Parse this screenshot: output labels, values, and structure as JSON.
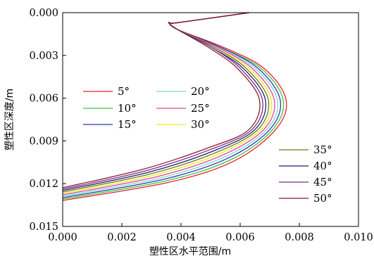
{
  "chart_data": {
    "type": "line",
    "title": "",
    "xlabel": "塑性区水平范围/m",
    "ylabel": "塑性区深度/m",
    "xlim": [
      0.0,
      0.01
    ],
    "ylim": [
      0.0,
      0.015
    ],
    "y_inverted": true,
    "x_ticks": [
      "0.000",
      "0.002",
      "0.004",
      "0.006",
      "0.008",
      "0.010"
    ],
    "y_ticks": [
      "0.000",
      "0.003",
      "0.006",
      "0.009",
      "0.012",
      "0.015"
    ],
    "grid": false,
    "legend_placement": "left-middle and right-lower",
    "series": [
      {
        "name": "5°",
        "color": "#e8202a",
        "points": [
          [
            0.0063,
            0.0
          ],
          [
            0.0039,
            0.0007
          ],
          [
            0.0036,
            0.0007
          ],
          [
            0.0039,
            0.0012
          ],
          [
            0.0054,
            0.0024
          ],
          [
            0.0068,
            0.0039
          ],
          [
            0.00755,
            0.0061
          ],
          [
            0.0072,
            0.0082
          ],
          [
            0.0058,
            0.0104
          ],
          [
            0.0036,
            0.0119
          ],
          [
            0.0,
            0.01318
          ]
        ]
      },
      {
        "name": "10°",
        "color": "#3cc23c",
        "points": [
          [
            0.0063,
            0.0
          ],
          [
            0.0039,
            0.0007
          ],
          [
            0.0036,
            0.0007
          ],
          [
            0.0039,
            0.0012
          ],
          [
            0.0053,
            0.0024
          ],
          [
            0.0067,
            0.0039
          ],
          [
            0.00745,
            0.0061
          ],
          [
            0.0071,
            0.0082
          ],
          [
            0.0057,
            0.0103
          ],
          [
            0.0035,
            0.0118
          ],
          [
            0.0,
            0.01308
          ]
        ]
      },
      {
        "name": "15°",
        "color": "#2a36b6",
        "points": [
          [
            0.0063,
            0.0
          ],
          [
            0.0039,
            0.0007
          ],
          [
            0.0036,
            0.0007
          ],
          [
            0.0039,
            0.0012
          ],
          [
            0.0053,
            0.0024
          ],
          [
            0.0066,
            0.0039
          ],
          [
            0.00735,
            0.0061
          ],
          [
            0.007,
            0.0082
          ],
          [
            0.0056,
            0.0102
          ],
          [
            0.0034,
            0.0117
          ],
          [
            0.0,
            0.01298
          ]
        ]
      },
      {
        "name": "20°",
        "color": "#7ad6cc",
        "points": [
          [
            0.0063,
            0.0
          ],
          [
            0.0039,
            0.0007
          ],
          [
            0.0036,
            0.0007
          ],
          [
            0.0039,
            0.0012
          ],
          [
            0.0052,
            0.0024
          ],
          [
            0.0065,
            0.0039
          ],
          [
            0.00725,
            0.0061
          ],
          [
            0.0069,
            0.0082
          ],
          [
            0.0055,
            0.0101
          ],
          [
            0.0033,
            0.0116
          ],
          [
            0.0,
            0.01288
          ]
        ]
      },
      {
        "name": "25°",
        "color": "#e0409a",
        "points": [
          [
            0.0063,
            0.0
          ],
          [
            0.0039,
            0.0007
          ],
          [
            0.0036,
            0.0007
          ],
          [
            0.0039,
            0.0012
          ],
          [
            0.0052,
            0.0024
          ],
          [
            0.0064,
            0.0039
          ],
          [
            0.00715,
            0.0061
          ],
          [
            0.0068,
            0.0082
          ],
          [
            0.0054,
            0.01
          ],
          [
            0.0032,
            0.0115
          ],
          [
            0.0,
            0.01278
          ]
        ]
      },
      {
        "name": "30°",
        "color": "#f2e51e",
        "points": [
          [
            0.0063,
            0.0
          ],
          [
            0.0039,
            0.0007
          ],
          [
            0.0036,
            0.0007
          ],
          [
            0.0039,
            0.0012
          ],
          [
            0.0051,
            0.0024
          ],
          [
            0.0063,
            0.0039
          ],
          [
            0.00705,
            0.0061
          ],
          [
            0.0067,
            0.0082
          ],
          [
            0.0053,
            0.0099
          ],
          [
            0.0031,
            0.0114
          ],
          [
            0.0,
            0.01268
          ]
        ]
      },
      {
        "name": "35°",
        "color": "#6b7a1e",
        "points": [
          [
            0.0063,
            0.0
          ],
          [
            0.0039,
            0.0007
          ],
          [
            0.0036,
            0.0007
          ],
          [
            0.0039,
            0.0012
          ],
          [
            0.0051,
            0.0024
          ],
          [
            0.0062,
            0.0039
          ],
          [
            0.00695,
            0.0061
          ],
          [
            0.0066,
            0.0082
          ],
          [
            0.0052,
            0.0098
          ],
          [
            0.003,
            0.0113
          ],
          [
            0.0,
            0.01258
          ]
        ]
      },
      {
        "name": "40°",
        "color": "#1e1e6e",
        "points": [
          [
            0.0063,
            0.0
          ],
          [
            0.0039,
            0.0007
          ],
          [
            0.0036,
            0.0007
          ],
          [
            0.0039,
            0.0012
          ],
          [
            0.005,
            0.0024
          ],
          [
            0.0061,
            0.0039
          ],
          [
            0.00685,
            0.0061
          ],
          [
            0.0065,
            0.0082
          ],
          [
            0.0051,
            0.0097
          ],
          [
            0.0029,
            0.0112
          ],
          [
            0.0,
            0.01248
          ]
        ]
      },
      {
        "name": "45°",
        "color": "#7a2c8c",
        "points": [
          [
            0.0063,
            0.0
          ],
          [
            0.0039,
            0.0007
          ],
          [
            0.0036,
            0.0007
          ],
          [
            0.0039,
            0.0012
          ],
          [
            0.005,
            0.0024
          ],
          [
            0.006,
            0.0039
          ],
          [
            0.00675,
            0.0061
          ],
          [
            0.0064,
            0.0082
          ],
          [
            0.005,
            0.0096
          ],
          [
            0.0028,
            0.0111
          ],
          [
            0.0,
            0.01238
          ]
        ]
      },
      {
        "name": "50°",
        "color": "#8a1c2c",
        "points": [
          [
            0.0063,
            0.0
          ],
          [
            0.0039,
            0.0007
          ],
          [
            0.0036,
            0.0007
          ],
          [
            0.0039,
            0.0012
          ],
          [
            0.0049,
            0.0024
          ],
          [
            0.0059,
            0.0039
          ],
          [
            0.00665,
            0.0061
          ],
          [
            0.0063,
            0.0082
          ],
          [
            0.0049,
            0.0095
          ],
          [
            0.0027,
            0.011
          ],
          [
            0.0,
            0.01228
          ]
        ]
      }
    ]
  }
}
